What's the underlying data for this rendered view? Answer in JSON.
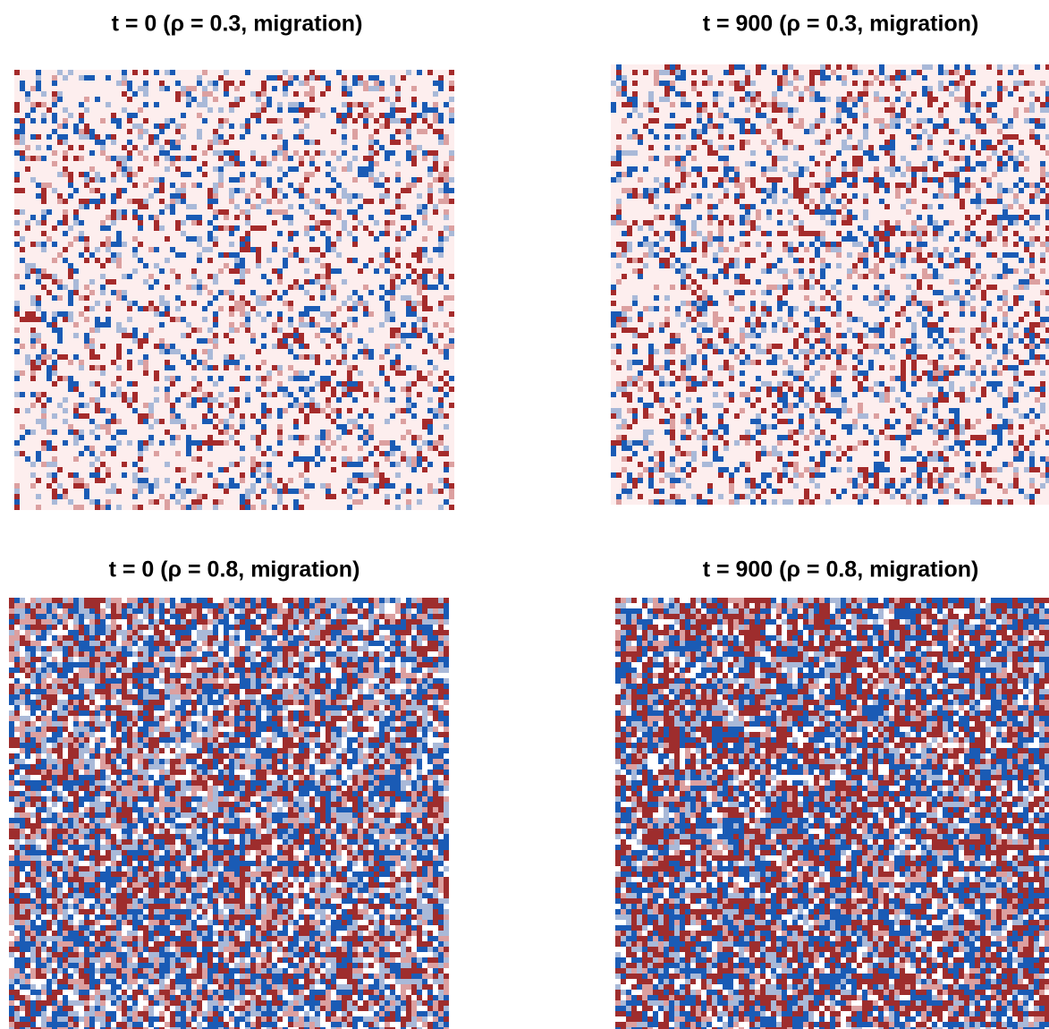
{
  "panels": [
    {
      "title": "t = 0 (ρ = 0.3, migration)",
      "empty_color": "#fdeeee",
      "colors": [
        "#a52b2b",
        "#1a5bb5",
        "#a9b9d8",
        "#dca0a0"
      ]
    },
    {
      "title": "t = 900 (ρ = 0.3, migration)",
      "empty_color": "#fdeeee",
      "colors": [
        "#a52b2b",
        "#1a5bb5",
        "#a9b9d8",
        "#dca0a0"
      ]
    },
    {
      "title": "t = 0 (ρ = 0.8, migration)",
      "empty_color": "#ffffff",
      "colors": [
        "#9e2d2d",
        "#1a5bb5",
        "#a9b9d8",
        "#dca0a0"
      ]
    },
    {
      "title": "t = 900 (ρ = 0.8, migration)",
      "empty_color": "#ffffff",
      "colors": [
        "#9e2d2d",
        "#1a5bb5",
        "#a9b9d8",
        "#dca0a0"
      ]
    }
  ]
}
